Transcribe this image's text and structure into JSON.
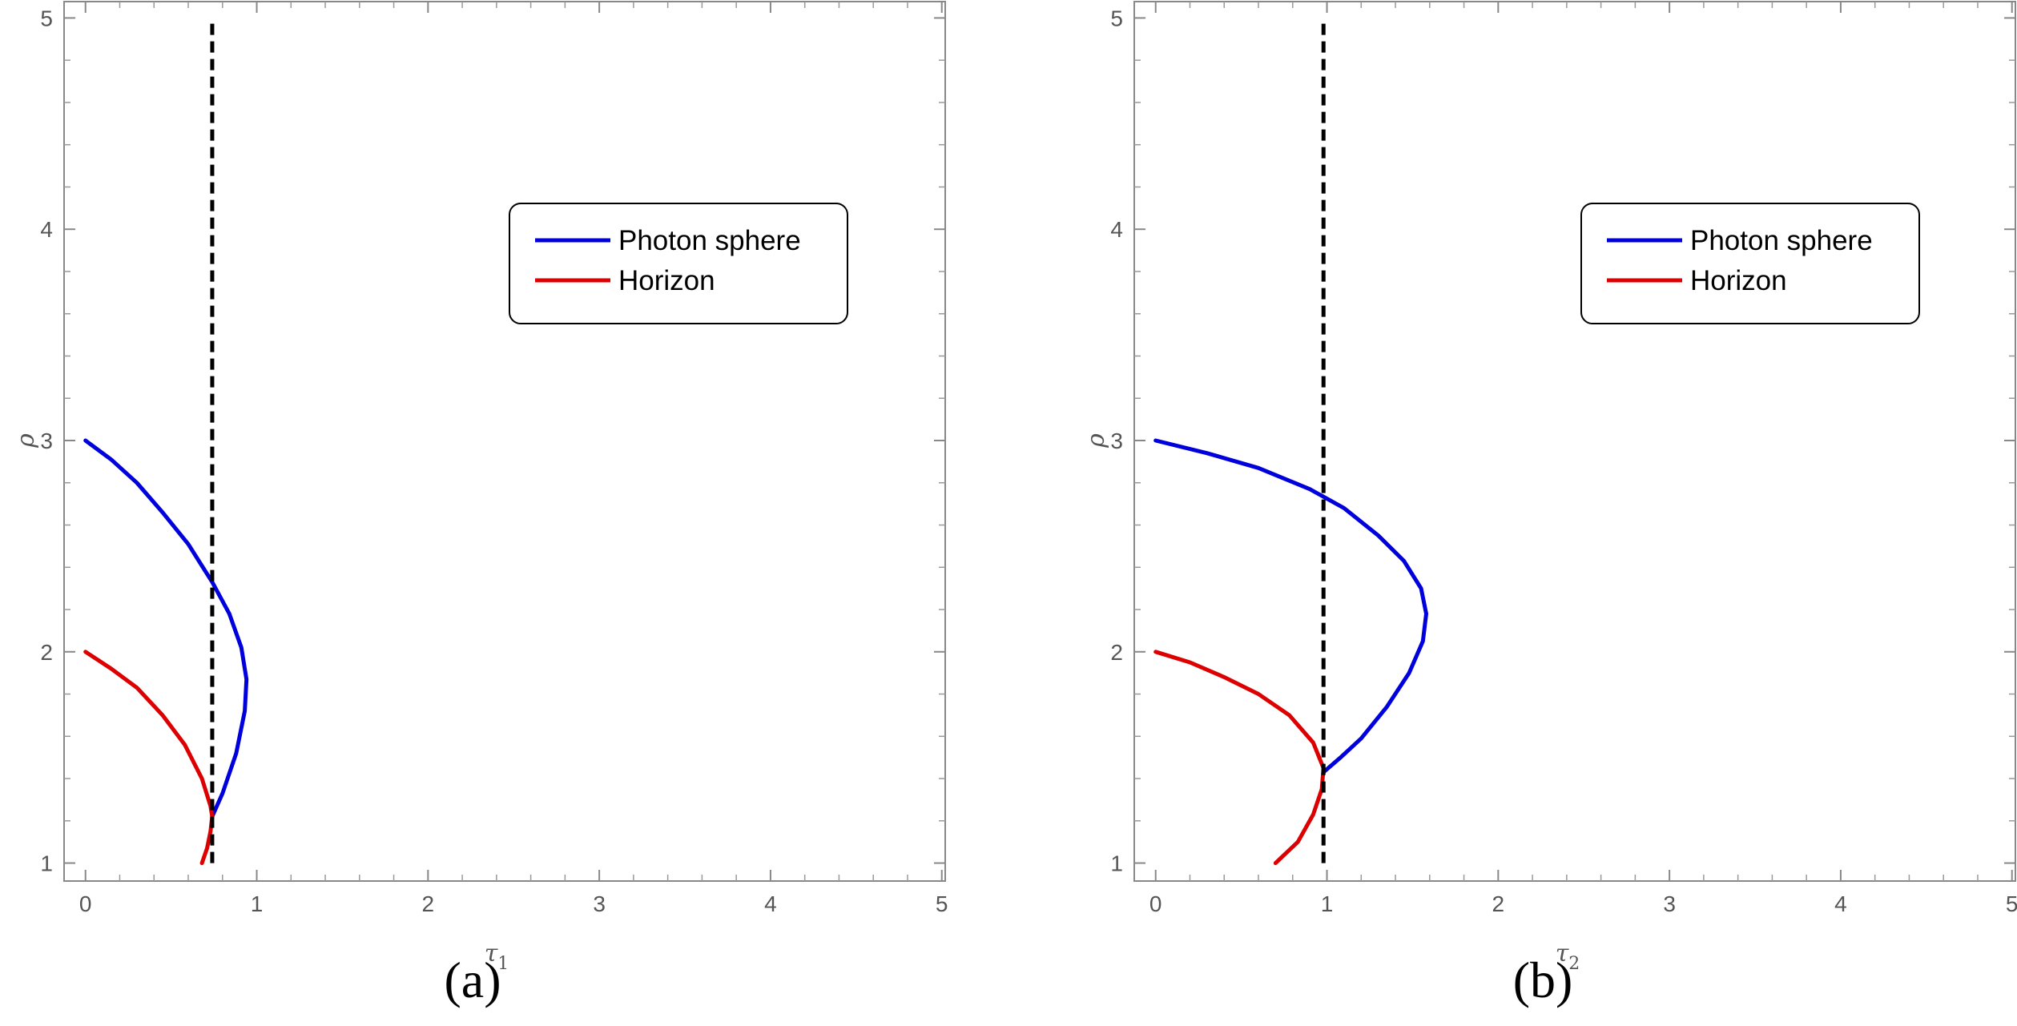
{
  "chart_data": [
    {
      "type": "line",
      "panel_caption": "(a)",
      "xlabel_symbol": "τ",
      "xlabel_subscript": "1",
      "ylabel": "ρ",
      "xlim": [
        0,
        5
      ],
      "ylim": [
        1,
        5
      ],
      "x_ticks": [
        "0",
        "1",
        "2",
        "3",
        "4",
        "5"
      ],
      "y_ticks": [
        "1",
        "2",
        "3",
        "4",
        "5"
      ],
      "grid": false,
      "legend_position": "top-right",
      "series": [
        {
          "name": "Photon sphere",
          "color": "#0000dd",
          "x": [
            0.0,
            0.15,
            0.3,
            0.45,
            0.6,
            0.74,
            0.84,
            0.91,
            0.94,
            0.93,
            0.88,
            0.8,
            0.74
          ],
          "y": [
            3.0,
            2.91,
            2.8,
            2.66,
            2.51,
            2.33,
            2.18,
            2.02,
            1.87,
            1.72,
            1.52,
            1.33,
            1.22
          ]
        },
        {
          "name": "Horizon",
          "color": "#dd0000",
          "x": [
            0.0,
            0.15,
            0.3,
            0.45,
            0.58,
            0.68,
            0.73,
            0.74,
            0.73,
            0.71,
            0.68
          ],
          "y": [
            2.0,
            1.92,
            1.83,
            1.7,
            1.56,
            1.4,
            1.27,
            1.22,
            1.15,
            1.07,
            1.0
          ]
        }
      ],
      "reference_line": {
        "style": "dashed",
        "color": "#000000",
        "x": 0.74
      }
    },
    {
      "type": "line",
      "panel_caption": "(b)",
      "xlabel_symbol": "τ",
      "xlabel_subscript": "2",
      "ylabel": "ρ",
      "xlim": [
        0,
        5
      ],
      "ylim": [
        1,
        5
      ],
      "x_ticks": [
        "0",
        "1",
        "2",
        "3",
        "4",
        "5"
      ],
      "y_ticks": [
        "1",
        "2",
        "3",
        "4",
        "5"
      ],
      "grid": false,
      "legend_position": "top-right",
      "series": [
        {
          "name": "Photon sphere",
          "color": "#0000dd",
          "x": [
            0.0,
            0.3,
            0.6,
            0.9,
            1.1,
            1.3,
            1.45,
            1.55,
            1.58,
            1.56,
            1.48,
            1.35,
            1.2,
            1.08,
            0.98
          ],
          "y": [
            3.0,
            2.94,
            2.87,
            2.77,
            2.68,
            2.55,
            2.43,
            2.3,
            2.18,
            2.05,
            1.9,
            1.74,
            1.59,
            1.5,
            1.43
          ]
        },
        {
          "name": "Horizon",
          "color": "#dd0000",
          "x": [
            0.0,
            0.2,
            0.4,
            0.6,
            0.78,
            0.92,
            0.98,
            0.97,
            0.92,
            0.83,
            0.7
          ],
          "y": [
            2.0,
            1.95,
            1.88,
            1.8,
            1.7,
            1.57,
            1.45,
            1.35,
            1.23,
            1.1,
            1.0
          ]
        }
      ],
      "reference_line": {
        "style": "dashed",
        "color": "#000000",
        "x": 0.98
      }
    }
  ]
}
